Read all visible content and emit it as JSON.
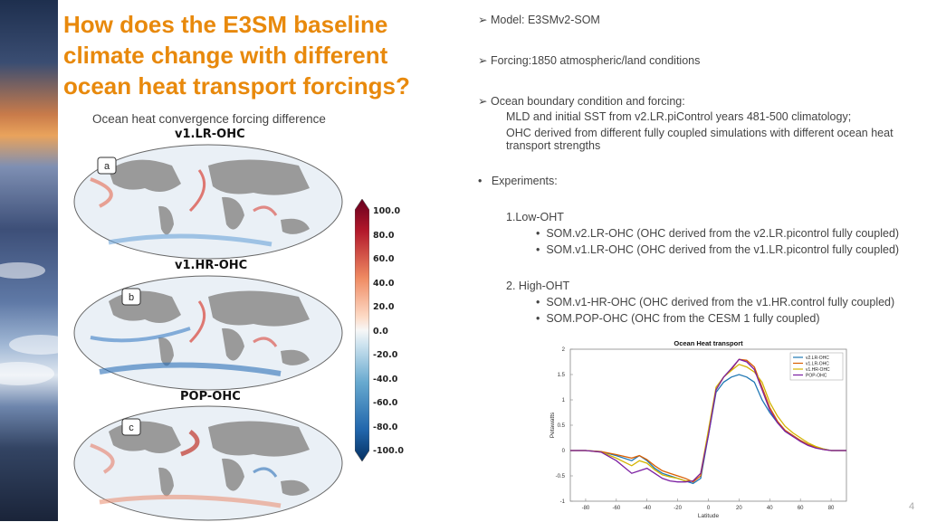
{
  "slide": {
    "title": "How does the E3SM baseline climate change with different ocean heat transport forcings?",
    "map_caption": "Ocean heat convergence forcing difference",
    "page_number": "4"
  },
  "maps": [
    {
      "title": "v1.LR-OHC",
      "panel": "a"
    },
    {
      "title": "v1.HR-OHC",
      "panel": "b"
    },
    {
      "title": "POP-OHC",
      "panel": "c"
    }
  ],
  "colorbar": {
    "ticks": [
      "100.0",
      "80.0",
      "60.0",
      "40.0",
      "20.0",
      "0.0",
      "-20.0",
      "-40.0",
      "-60.0",
      "-80.0",
      "-100.0"
    ]
  },
  "bullets": {
    "model": "Model: E3SMv2-SOM",
    "forcing": "Forcing:1850 atmospheric/land conditions",
    "ocean": "Ocean boundary condition and forcing:",
    "ocean_sub1": "MLD and initial SST from v2.LR.piControl years 481-500 climatology;",
    "ocean_sub2_line1": "OHC derived from different fully coupled simulations with different ocean heat",
    "ocean_sub2_line2": "transport strengths",
    "experiments": "Experiments:",
    "low": "1.Low-OHT",
    "low_1": "SOM.v2.LR-OHC (OHC derived from the v2.LR.picontrol fully coupled)",
    "low_2": "SOM.v1.LR-OHC (OHC derived from the v1.LR.picontrol fully coupled)",
    "high": "2. High-OHT",
    "high_1": "SOM.v1-HR-OHC (OHC derived from the v1.HR.control fully coupled)",
    "high_2": "SOM.POP-OHC (OHC from the CESM 1 fully coupled)",
    "arrow_glyph": "➢",
    "dot_glyph": "•"
  },
  "chart_data": {
    "type": "line",
    "title": "Ocean Heat transport",
    "xlabel": "Latitude",
    "ylabel": "Petawatts",
    "xlim": [
      -90,
      90
    ],
    "ylim": [
      -1,
      2
    ],
    "xticks": [
      -80,
      -60,
      -40,
      -20,
      0,
      20,
      40,
      60,
      80
    ],
    "yticks": [
      2,
      1.5,
      1,
      0.5,
      0,
      -0.5,
      -1
    ],
    "legend_position": "top-right",
    "x": [
      -90,
      -80,
      -70,
      -60,
      -50,
      -45,
      -40,
      -35,
      -30,
      -25,
      -20,
      -15,
      -10,
      -5,
      0,
      5,
      10,
      15,
      20,
      25,
      30,
      35,
      40,
      45,
      50,
      55,
      60,
      65,
      70,
      75,
      80,
      85,
      90
    ],
    "series": [
      {
        "name": "v2.LR-OHC",
        "color": "#1f77b4",
        "values": [
          0,
          0,
          -0.02,
          -0.1,
          -0.2,
          -0.1,
          -0.2,
          -0.35,
          -0.45,
          -0.5,
          -0.55,
          -0.6,
          -0.65,
          -0.55,
          0.3,
          1.15,
          1.35,
          1.45,
          1.5,
          1.45,
          1.35,
          1.0,
          0.75,
          0.55,
          0.38,
          0.28,
          0.2,
          0.12,
          0.07,
          0.03,
          0,
          0,
          0
        ]
      },
      {
        "name": "v1.LR-OHC",
        "color": "#d95f02",
        "values": [
          0,
          0,
          -0.02,
          -0.08,
          -0.15,
          -0.1,
          -0.18,
          -0.3,
          -0.4,
          -0.45,
          -0.5,
          -0.55,
          -0.62,
          -0.5,
          0.35,
          1.2,
          1.45,
          1.6,
          1.8,
          1.78,
          1.65,
          1.25,
          0.85,
          0.58,
          0.4,
          0.3,
          0.2,
          0.12,
          0.06,
          0.02,
          0,
          0,
          0
        ]
      },
      {
        "name": "v1.HR-OHC",
        "color": "#d4b400",
        "values": [
          0,
          0,
          -0.03,
          -0.15,
          -0.3,
          -0.2,
          -0.25,
          -0.38,
          -0.48,
          -0.52,
          -0.55,
          -0.6,
          -0.6,
          -0.45,
          0.4,
          1.25,
          1.45,
          1.58,
          1.7,
          1.65,
          1.55,
          1.35,
          0.95,
          0.68,
          0.48,
          0.35,
          0.25,
          0.15,
          0.08,
          0.03,
          0,
          0,
          0
        ]
      },
      {
        "name": "POP-OHC",
        "color": "#7b1fa2",
        "values": [
          0,
          0,
          -0.03,
          -0.2,
          -0.45,
          -0.4,
          -0.35,
          -0.45,
          -0.55,
          -0.6,
          -0.62,
          -0.62,
          -0.6,
          -0.45,
          0.3,
          1.2,
          1.45,
          1.62,
          1.8,
          1.75,
          1.6,
          1.2,
          0.8,
          0.55,
          0.38,
          0.28,
          0.18,
          0.1,
          0.05,
          0.02,
          0,
          0,
          0
        ]
      }
    ]
  }
}
